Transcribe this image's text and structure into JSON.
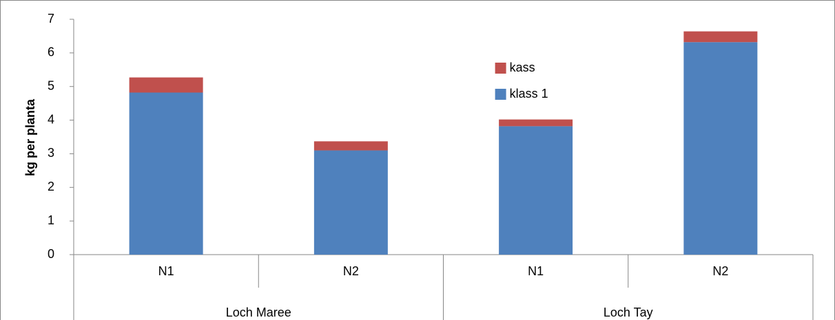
{
  "chart_data": {
    "type": "stacked-bar",
    "y_label": "kg per planta",
    "categories": [
      "N1",
      "N2",
      "N1",
      "N2"
    ],
    "groups": [
      {
        "name": "Loch Maree",
        "size": 2
      },
      {
        "name": "Loch Tay",
        "size": 2
      }
    ],
    "series": [
      {
        "name": "klass 1",
        "color": "#4f81bd",
        "values": [
          4.82,
          3.1,
          3.82,
          6.32
        ]
      },
      {
        "name": "kass",
        "color": "#c0504d",
        "values": [
          0.45,
          0.27,
          0.2,
          0.32
        ]
      }
    ],
    "ylim": [
      0,
      7
    ],
    "yticks": [
      0,
      1,
      2,
      3,
      4,
      5,
      6,
      7
    ],
    "grid": false,
    "legend": "upper-center"
  }
}
